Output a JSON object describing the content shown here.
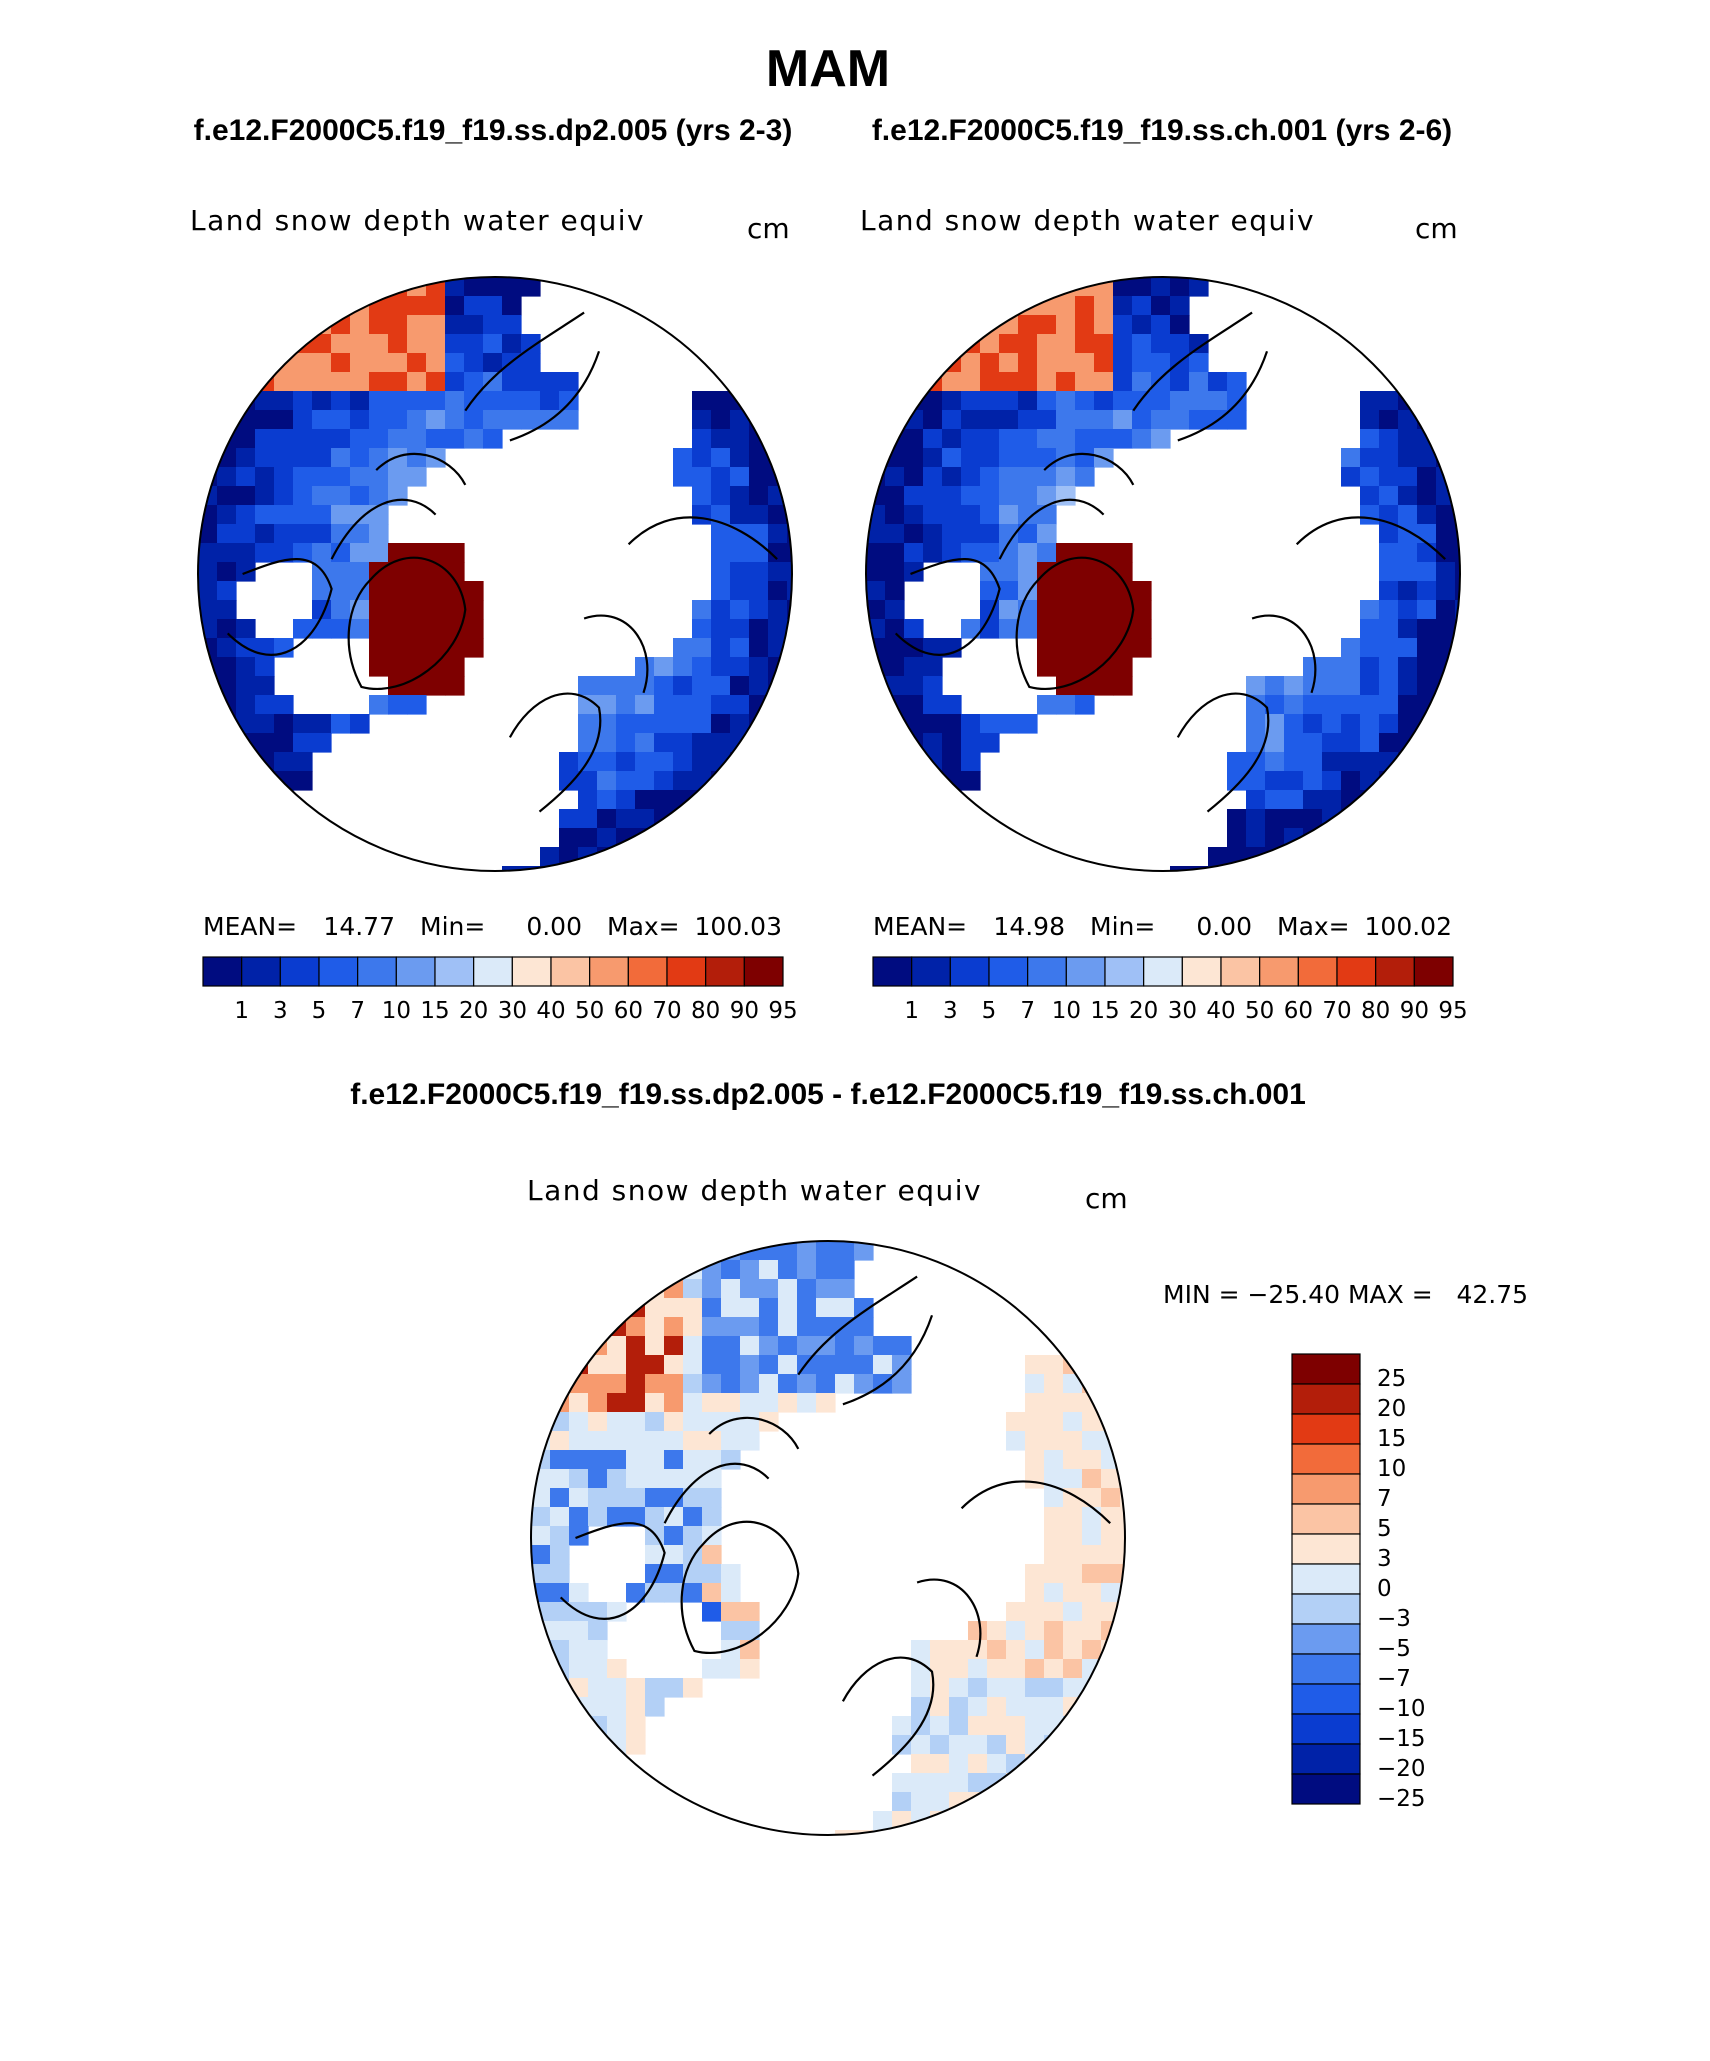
{
  "title": "MAM",
  "colors": {
    "seq_scale": [
      "#000c80",
      "#0022a8",
      "#0a3cd0",
      "#1f5ce8",
      "#3d78ec",
      "#6b9bf0",
      "#9fc0f6",
      "#dbeaf9",
      "#fde6d4",
      "#fbc4a4",
      "#f79a6e",
      "#f26b3a",
      "#e23a14",
      "#b31e0a",
      "#7e0000"
    ],
    "diff_scale": [
      "#000c80",
      "#0022a8",
      "#0a3cd0",
      "#1f5ce8",
      "#3d78ec",
      "#6b9bf0",
      "#b3d0f6",
      "#dbeaf9",
      "#fde6d4",
      "#fbc4a4",
      "#f79a6e",
      "#f26b3a",
      "#e23a14",
      "#b31e0a",
      "#7e0000"
    ]
  },
  "chart_data": [
    {
      "type": "heatmap",
      "projection": "polar-stereographic-north",
      "case_title": "f.e12.F2000C5.f19_f19.ss.dp2.005 (yrs 2-3)",
      "variable": "Land snow depth water equiv",
      "units": "cm",
      "stats": {
        "mean_label": "MEAN=",
        "mean": "14.77",
        "min_label": "Min=",
        "min": "0.00",
        "max_label": "Max=",
        "max": "100.03"
      },
      "colorbar_labels": [
        "1",
        "3",
        "5",
        "7",
        "10",
        "15",
        "20",
        "30",
        "40",
        "50",
        "60",
        "70",
        "80",
        "90",
        "95"
      ]
    },
    {
      "type": "heatmap",
      "projection": "polar-stereographic-north",
      "case_title": "f.e12.F2000C5.f19_f19.ss.ch.001 (yrs 2-6)",
      "variable": "Land snow depth water equiv",
      "units": "cm",
      "stats": {
        "mean_label": "MEAN=",
        "mean": "14.98",
        "min_label": "Min=",
        "min": "0.00",
        "max_label": "Max=",
        "max": "100.02"
      },
      "colorbar_labels": [
        "1",
        "3",
        "5",
        "7",
        "10",
        "15",
        "20",
        "30",
        "40",
        "50",
        "60",
        "70",
        "80",
        "90",
        "95"
      ]
    },
    {
      "type": "heatmap",
      "projection": "polar-stereographic-north",
      "case_title": "f.e12.F2000C5.f19_f19.ss.dp2.005 - f.e12.F2000C5.f19_f19.ss.ch.001",
      "variable": "Land snow depth water equiv",
      "units": "cm",
      "stats_text": "MIN = −25.40 MAX =   42.75",
      "colorbar_labels": [
        "25",
        "20",
        "15",
        "10",
        "7",
        "5",
        "3",
        "0",
        "−3",
        "−5",
        "−7",
        "−10",
        "−15",
        "−20",
        "−25"
      ]
    }
  ]
}
